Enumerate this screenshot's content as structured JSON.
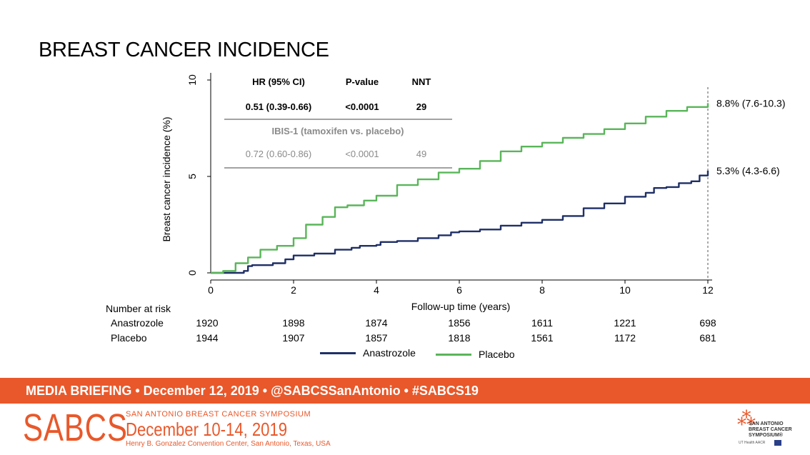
{
  "slide_title": "BREAST CANCER INCIDENCE",
  "chart_data": {
    "type": "line",
    "title": "BREAST CANCER INCIDENCE",
    "xlabel": "Follow-up time (years)",
    "ylabel": "Breast cancer incidence (%)",
    "xlim": [
      0,
      12
    ],
    "ylim": [
      0,
      10
    ],
    "xticks": [
      0,
      2,
      4,
      6,
      8,
      10,
      12
    ],
    "yticks": [
      0,
      5,
      10
    ],
    "grid": false,
    "series": [
      {
        "name": "Anastrozole",
        "color": "#1f2f66",
        "end_label": "5.3% (4.3-6.6)",
        "x": [
          0,
          0.4,
          0.8,
          0.9,
          1.0,
          1.5,
          1.8,
          2.0,
          2.5,
          3.0,
          3.4,
          3.6,
          4.0,
          4.1,
          4.5,
          5.0,
          5.5,
          5.8,
          6.0,
          6.5,
          7.0,
          7.5,
          8.0,
          8.5,
          9.0,
          9.5,
          10.0,
          10.5,
          10.7,
          11.0,
          11.3,
          11.6,
          11.8,
          12.0
        ],
        "y": [
          0,
          0,
          0.1,
          0.35,
          0.4,
          0.5,
          0.7,
          0.9,
          1.0,
          1.2,
          1.3,
          1.4,
          1.45,
          1.6,
          1.65,
          1.8,
          1.95,
          2.1,
          2.15,
          2.25,
          2.45,
          2.6,
          2.75,
          2.95,
          3.35,
          3.6,
          3.95,
          4.15,
          4.4,
          4.45,
          4.65,
          4.75,
          5.05,
          5.3
        ]
      },
      {
        "name": "Placebo",
        "color": "#5ab55a",
        "end_label": "8.8% (7.6-10.3)",
        "x": [
          0,
          0.3,
          0.6,
          0.9,
          1.2,
          1.6,
          2.0,
          2.3,
          2.7,
          3.0,
          3.3,
          3.7,
          4.0,
          4.5,
          5.0,
          5.5,
          6.0,
          6.5,
          7.0,
          7.5,
          8.0,
          8.5,
          9.0,
          9.5,
          10.0,
          10.5,
          11.0,
          11.5,
          12.0
        ],
        "y": [
          0,
          0.1,
          0.5,
          0.8,
          1.2,
          1.4,
          1.8,
          2.5,
          2.9,
          3.4,
          3.5,
          3.75,
          4.0,
          4.55,
          4.85,
          5.2,
          5.4,
          5.8,
          6.3,
          6.55,
          6.75,
          7.0,
          7.2,
          7.45,
          7.75,
          8.1,
          8.4,
          8.6,
          8.8
        ]
      }
    ],
    "x_reference_line": 12,
    "inset_table": {
      "headers": [
        "HR (95% CI)",
        "P-value",
        "NNT"
      ],
      "row": [
        "0.51 (0.39-0.66)",
        "<0.0001",
        "29"
      ],
      "subheading": "IBIS-1 (tamoxifen vs. placebo)",
      "row2": [
        "0.72 (0.60-0.86)",
        "<0.0001",
        "49"
      ]
    },
    "risk_table": {
      "label": "Number at risk",
      "times": [
        0,
        2,
        4,
        6,
        8,
        10,
        12
      ],
      "rows": [
        {
          "name": "Anastrozole",
          "values": [
            "1920",
            "1898",
            "1874",
            "1856",
            "1611",
            "1221",
            "698"
          ]
        },
        {
          "name": "Placebo",
          "values": [
            "1944",
            "1907",
            "1857",
            "1818",
            "1561",
            "1172",
            "681"
          ]
        }
      ]
    },
    "legend": [
      "Anastrozole",
      "Placebo"
    ]
  },
  "banner": {
    "text": "MEDIA BRIEFING  •  December 12, 2019  •  @SABCSSanAntonio  •  #SABCS19"
  },
  "footer": {
    "logo_text": "SABCS",
    "symposium_name": "SAN ANTONIO BREAST CANCER SYMPOSIUM",
    "dates": "December 10-14, 2019",
    "venue": "Henry B. Gonzalez Convention Center, San Antonio, Texas, USA",
    "right_logo_text": "SAN ANTONIO BREAST CANCER SYMPOSIUM®",
    "right_logo_sub": "UT Health AACR"
  },
  "colors": {
    "accent": "#e9582a",
    "anastrozole": "#1f2f66",
    "placebo": "#5ab55a"
  }
}
